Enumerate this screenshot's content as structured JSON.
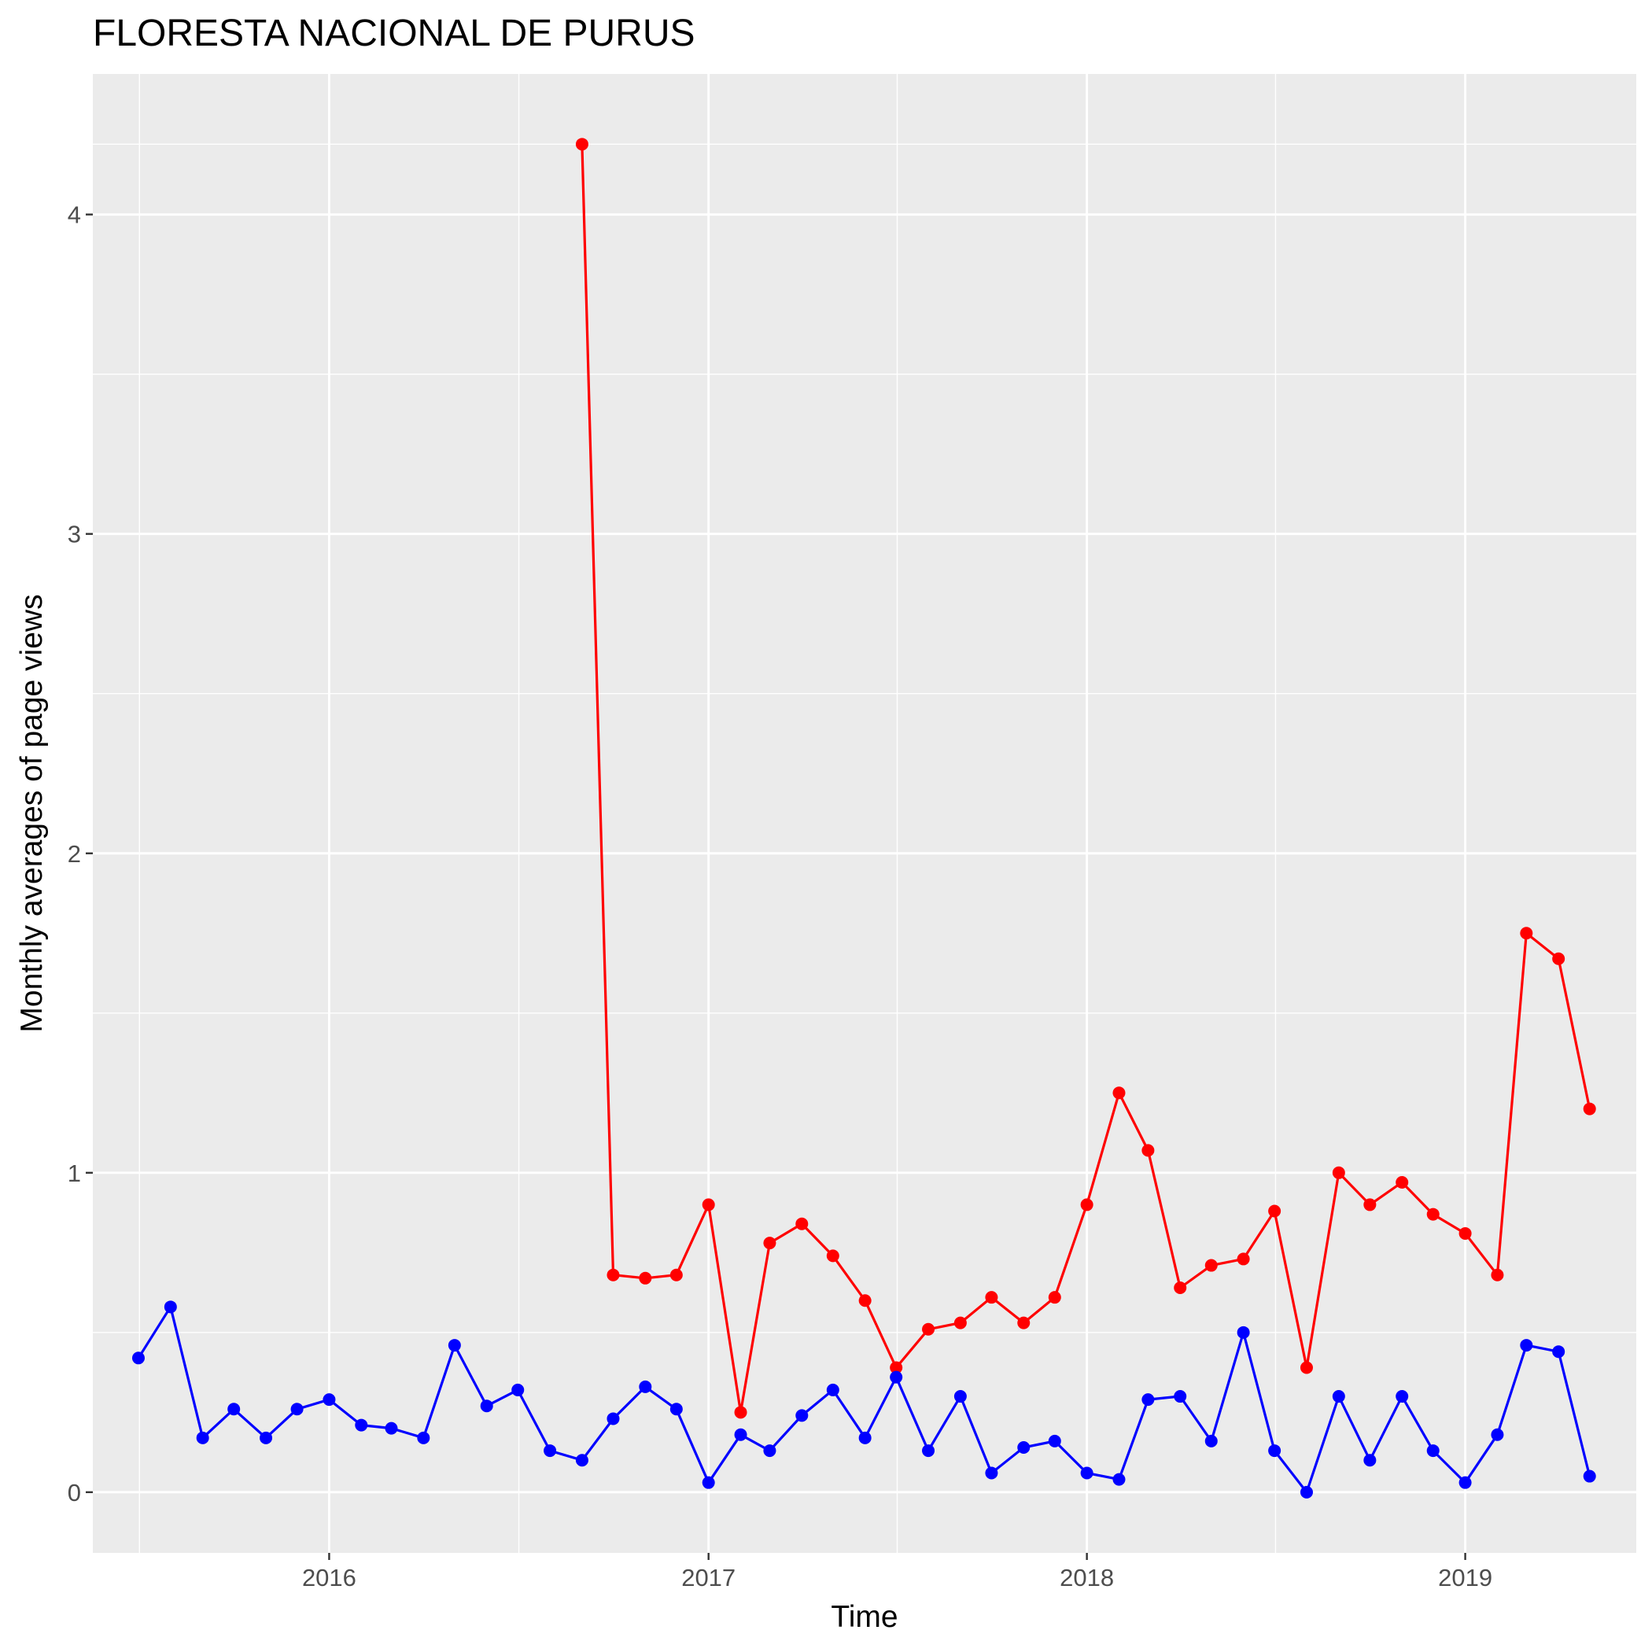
{
  "chart_data": {
    "type": "line",
    "title": "FLORESTA NACIONAL DE PURUS",
    "xlabel": "Time",
    "ylabel": "Monthly averages of page views",
    "xlim": [
      "2015-05-18",
      "2019-06-15"
    ],
    "ylim": [
      -0.19,
      4.44
    ],
    "x_ticks": [
      {
        "date": "2016-01-01",
        "label": "2016"
      },
      {
        "date": "2017-01-01",
        "label": "2017"
      },
      {
        "date": "2018-01-01",
        "label": "2018"
      },
      {
        "date": "2019-01-01",
        "label": "2019"
      }
    ],
    "y_ticks": [
      {
        "value": 0,
        "label": "0"
      },
      {
        "value": 1,
        "label": "1"
      },
      {
        "value": 2,
        "label": "2"
      },
      {
        "value": 3,
        "label": "3"
      },
      {
        "value": 4,
        "label": "4"
      }
    ],
    "grid": true,
    "legend": "none",
    "background": "#ebebeb",
    "series": [
      {
        "color": "#ff0000",
        "x": [
          "2016-09-01",
          "2016-10-01",
          "2016-11-01",
          "2016-12-01",
          "2017-01-01",
          "2017-02-01",
          "2017-03-01",
          "2017-04-01",
          "2017-05-01",
          "2017-06-01",
          "2017-07-01",
          "2017-08-01",
          "2017-09-01",
          "2017-10-01",
          "2017-11-01",
          "2017-12-01",
          "2018-01-01",
          "2018-02-01",
          "2018-03-01",
          "2018-04-01",
          "2018-05-01",
          "2018-06-01",
          "2018-07-01",
          "2018-08-01",
          "2018-09-01",
          "2018-10-01",
          "2018-11-01",
          "2018-12-01",
          "2019-01-01",
          "2019-02-01",
          "2019-03-01",
          "2019-04-01",
          "2019-05-01"
        ],
        "values": [
          4.22,
          0.68,
          0.67,
          0.68,
          0.9,
          0.25,
          0.78,
          0.84,
          0.74,
          0.6,
          0.39,
          0.51,
          0.53,
          0.61,
          0.53,
          0.61,
          0.9,
          1.25,
          1.07,
          0.64,
          0.71,
          0.73,
          0.88,
          0.39,
          1.0,
          0.9,
          0.97,
          0.87,
          0.81,
          0.68,
          1.75,
          1.67,
          1.2
        ]
      },
      {
        "color": "#0000ff",
        "x": [
          "2015-07-01",
          "2015-08-01",
          "2015-09-01",
          "2015-10-01",
          "2015-11-01",
          "2015-12-01",
          "2016-01-01",
          "2016-02-01",
          "2016-03-01",
          "2016-04-01",
          "2016-05-01",
          "2016-06-01",
          "2016-07-01",
          "2016-08-01",
          "2016-09-01",
          "2016-10-01",
          "2016-11-01",
          "2016-12-01",
          "2017-01-01",
          "2017-02-01",
          "2017-03-01",
          "2017-04-01",
          "2017-05-01",
          "2017-06-01",
          "2017-07-01",
          "2017-08-01",
          "2017-09-01",
          "2017-10-01",
          "2017-11-01",
          "2017-12-01",
          "2018-01-01",
          "2018-02-01",
          "2018-03-01",
          "2018-04-01",
          "2018-05-01",
          "2018-06-01",
          "2018-07-01",
          "2018-08-01",
          "2018-09-01",
          "2018-10-01",
          "2018-11-01",
          "2018-12-01",
          "2019-01-01",
          "2019-02-01",
          "2019-03-01",
          "2019-04-01",
          "2019-05-01"
        ],
        "values": [
          0.42,
          0.58,
          0.17,
          0.26,
          0.17,
          0.26,
          0.29,
          0.21,
          0.2,
          0.17,
          0.46,
          0.27,
          0.32,
          0.13,
          0.1,
          0.23,
          0.33,
          0.26,
          0.03,
          0.18,
          0.13,
          0.24,
          0.32,
          0.17,
          0.36,
          0.13,
          0.3,
          0.06,
          0.14,
          0.16,
          0.06,
          0.04,
          0.29,
          0.3,
          0.16,
          0.5,
          0.13,
          0.0,
          0.3,
          0.1,
          0.3,
          0.13,
          0.03,
          0.18,
          0.46,
          0.44,
          0.05
        ]
      }
    ]
  }
}
